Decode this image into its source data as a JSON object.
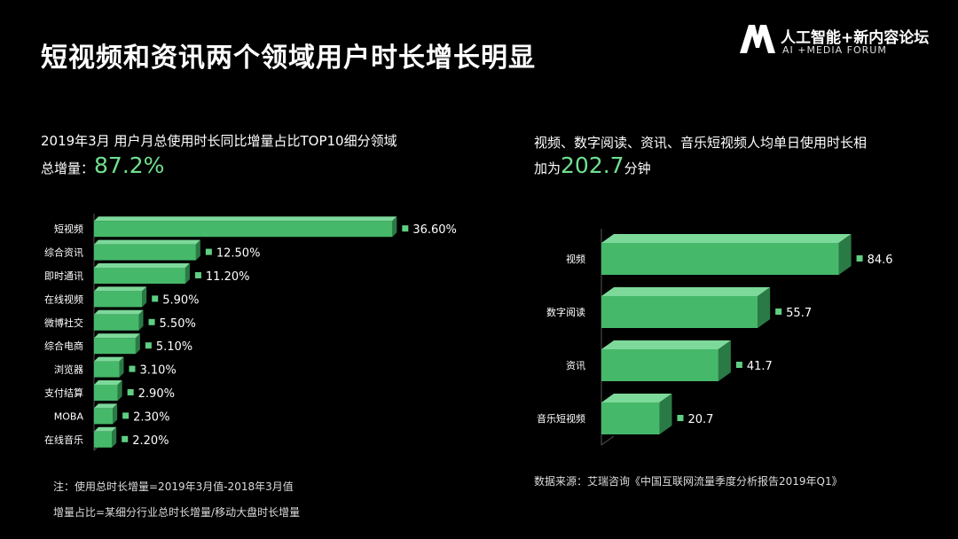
{
  "header": {
    "title": "短视频和资讯两个领域用户时长增长明显",
    "logo_cn": "人工智能+新内容论坛",
    "logo_en": "AI +MEDIA FORUM"
  },
  "left": {
    "subtitle": "2019年3月 用户月总使用时长同比增量占比TOP10细分领域",
    "total_label": "总增量：",
    "total_value": "87.2%",
    "notes": [
      "注：使用总时长增量=2019年3月值-2018年3月值",
      "增量占比=某细分行业总时长增量/移动大盘时长增量"
    ]
  },
  "right": {
    "subtitle_line1": "视频、数字阅读、资讯、音乐短视频人均单日使用时长相",
    "subtitle_prefix": "加为",
    "subtitle_value": "202.7",
    "subtitle_suffix": "分钟",
    "source": "数据来源：艾瑞咨询《中国互联网流量季度分析报告2019年Q1》"
  },
  "colors": {
    "bar_front": "#46b86a",
    "bar_top": "#7dd99a",
    "bar_side": "#2a7a45",
    "highlight": "#6fe08f",
    "marker": "#5fcf82"
  },
  "chart_data": [
    {
      "type": "bar",
      "orientation": "horizontal",
      "style": "3d",
      "categories": [
        "短视频",
        "综合资讯",
        "即时通讯",
        "在线视频",
        "微博社交",
        "综合电商",
        "浏览器",
        "支付结算",
        "MOBA",
        "在线音乐"
      ],
      "values": [
        36.6,
        12.5,
        11.2,
        5.9,
        5.5,
        5.1,
        3.1,
        2.9,
        2.3,
        2.2
      ],
      "labels": [
        "36.60%",
        "12.50%",
        "11.20%",
        "5.90%",
        "5.50%",
        "5.10%",
        "3.10%",
        "2.90%",
        "2.30%",
        "2.20%"
      ],
      "xlim": [
        0,
        37
      ],
      "grid": false
    },
    {
      "type": "bar",
      "orientation": "horizontal",
      "style": "3d",
      "categories": [
        "视频",
        "数字阅读",
        "资讯",
        "音乐短视频"
      ],
      "values": [
        84.6,
        55.7,
        41.7,
        20.7
      ],
      "labels": [
        "84.6",
        "55.7",
        "41.7",
        "20.7"
      ],
      "xlim": [
        0,
        86
      ],
      "grid": false
    }
  ]
}
